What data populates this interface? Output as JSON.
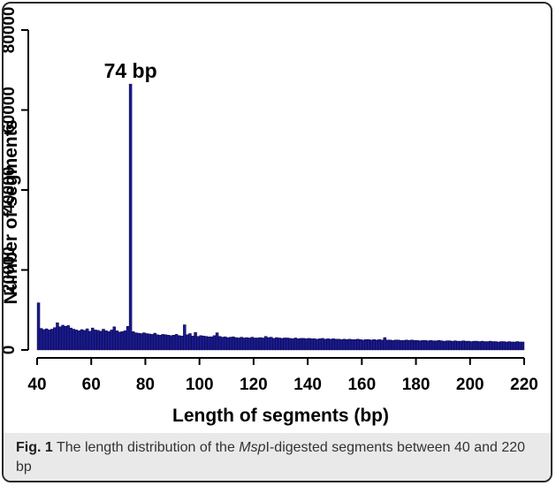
{
  "caption": {
    "label": "Fig. 1",
    "text_before": " The length distribution of the ",
    "emphasis": "Msp",
    "text_after": "I-digested segments between 40 and 220 bp"
  },
  "chart_data": {
    "type": "bar",
    "title": "",
    "xlabel": "Length of segments (bp)",
    "ylabel": "Number of segments",
    "xlim": [
      40,
      220
    ],
    "ylim": [
      0,
      80000
    ],
    "xticks": [
      40,
      60,
      80,
      100,
      120,
      140,
      160,
      180,
      200,
      220
    ],
    "yticks": [
      0,
      20000,
      40000,
      60000,
      80000
    ],
    "ytick_labels": [
      "0",
      "20000",
      "40000",
      "60000",
      "80000"
    ],
    "grid": false,
    "bar_color": "#1a1a8c",
    "bar_edge": "#000033",
    "annotations": [
      {
        "x": 74,
        "text": "74 bp"
      }
    ],
    "x": [
      40,
      41,
      42,
      43,
      44,
      45,
      46,
      47,
      48,
      49,
      50,
      51,
      52,
      53,
      54,
      55,
      56,
      57,
      58,
      59,
      60,
      61,
      62,
      63,
      64,
      65,
      66,
      67,
      68,
      69,
      70,
      71,
      72,
      73,
      74,
      75,
      76,
      77,
      78,
      79,
      80,
      81,
      82,
      83,
      84,
      85,
      86,
      87,
      88,
      89,
      90,
      91,
      92,
      93,
      94,
      95,
      96,
      97,
      98,
      99,
      100,
      101,
      102,
      103,
      104,
      105,
      106,
      107,
      108,
      109,
      110,
      111,
      112,
      113,
      114,
      115,
      116,
      117,
      118,
      119,
      120,
      121,
      122,
      123,
      124,
      125,
      126,
      127,
      128,
      129,
      130,
      131,
      132,
      133,
      134,
      135,
      136,
      137,
      138,
      139,
      140,
      141,
      142,
      143,
      144,
      145,
      146,
      147,
      148,
      149,
      150,
      151,
      152,
      153,
      154,
      155,
      156,
      157,
      158,
      159,
      160,
      161,
      162,
      163,
      164,
      165,
      166,
      167,
      168,
      169,
      170,
      171,
      172,
      173,
      174,
      175,
      176,
      177,
      178,
      179,
      180,
      181,
      182,
      183,
      184,
      185,
      186,
      187,
      188,
      189,
      190,
      191,
      192,
      193,
      194,
      195,
      196,
      197,
      198,
      199,
      200,
      201,
      202,
      203,
      204,
      205,
      206,
      207,
      208,
      209,
      210,
      211,
      212,
      213,
      214,
      215,
      216,
      217,
      218,
      219
    ],
    "values": [
      11800,
      5400,
      5100,
      5300,
      5000,
      5200,
      5600,
      6800,
      5800,
      6200,
      5900,
      6100,
      5500,
      5200,
      5000,
      4800,
      5100,
      4900,
      5300,
      4700,
      5500,
      5000,
      4900,
      4700,
      5200,
      4800,
      4600,
      5000,
      5800,
      4800,
      4500,
      4600,
      4800,
      5900,
      66500,
      4600,
      4300,
      4200,
      4100,
      4300,
      4100,
      4000,
      3900,
      4200,
      3800,
      3700,
      3900,
      3800,
      3700,
      3600,
      3700,
      3900,
      3600,
      3500,
      6300,
      3800,
      4100,
      3500,
      4400,
      3400,
      3600,
      3500,
      3400,
      3300,
      3300,
      3600,
      4300,
      3400,
      3200,
      3300,
      3100,
      3200,
      3300,
      3100,
      3000,
      3200,
      3000,
      3100,
      3000,
      3200,
      3000,
      3000,
      3100,
      3000,
      3400,
      3100,
      3200,
      2900,
      3100,
      3000,
      2900,
      3000,
      3000,
      2900,
      2800,
      3000,
      2800,
      2900,
      2900,
      2800,
      2900,
      2800,
      2800,
      2700,
      2800,
      2900,
      2700,
      2800,
      2700,
      2800,
      2700,
      2700,
      2600,
      2700,
      2600,
      2700,
      2600,
      2600,
      2700,
      2600,
      2500,
      2600,
      2600,
      2500,
      2600,
      2500,
      2600,
      2500,
      3100,
      2500,
      2500,
      2400,
      2500,
      2500,
      2400,
      2400,
      2500,
      2400,
      2500,
      2400,
      2400,
      2300,
      2400,
      2400,
      2300,
      2400,
      2300,
      2300,
      2400,
      2300,
      2200,
      2300,
      2300,
      2200,
      2300,
      2200,
      2200,
      2300,
      2200,
      2200,
      2100,
      2200,
      2200,
      2100,
      2200,
      2100,
      2100,
      2200,
      2100,
      2100,
      2000,
      2100,
      2100,
      2000,
      2100,
      2000,
      2000,
      2100,
      2000,
      2000
    ]
  }
}
